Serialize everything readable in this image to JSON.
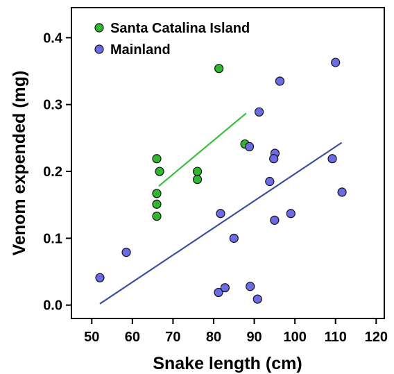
{
  "chart_data": {
    "type": "scatter",
    "xlabel": "Snake length (cm)",
    "ylabel": "Venom expended (mg)",
    "xlim": [
      45,
      122
    ],
    "ylim": [
      -0.02,
      0.445
    ],
    "x_ticks": [
      50,
      60,
      70,
      80,
      90,
      100,
      110,
      120
    ],
    "y_ticks": [
      0.0,
      0.1,
      0.2,
      0.3,
      0.4
    ],
    "x_tick_labels": [
      "50",
      "60",
      "70",
      "80",
      "90",
      "100",
      "110",
      "120"
    ],
    "y_tick_labels": [
      "0.0",
      "0.1",
      "0.2",
      "0.3",
      "0.4"
    ],
    "grid": false,
    "legend_position": "top-left",
    "series": [
      {
        "name": "Santa Catalina Island",
        "color": "#2eb82e",
        "line_color": "#3cbf3c",
        "points": [
          [
            66,
            0.219
          ],
          [
            66.7,
            0.2
          ],
          [
            66,
            0.167
          ],
          [
            66,
            0.151
          ],
          [
            66,
            0.133
          ],
          [
            76,
            0.2
          ],
          [
            76,
            0.188
          ],
          [
            81.3,
            0.354
          ],
          [
            87.7,
            0.241
          ]
        ],
        "trend": {
          "x": [
            66.5,
            88
          ],
          "y": [
            0.178,
            0.287
          ]
        }
      },
      {
        "name": "Mainland",
        "color": "#6b6be8",
        "line_color": "#3a4fa0",
        "points": [
          [
            52,
            0.041
          ],
          [
            58.5,
            0.079
          ],
          [
            81.7,
            0.137
          ],
          [
            85,
            0.1
          ],
          [
            81.2,
            0.019
          ],
          [
            82.8,
            0.026
          ],
          [
            89,
            0.028
          ],
          [
            90.8,
            0.009
          ],
          [
            88.8,
            0.237
          ],
          [
            91.2,
            0.289
          ],
          [
            96.3,
            0.335
          ],
          [
            95.1,
            0.227
          ],
          [
            94.8,
            0.219
          ],
          [
            93.8,
            0.185
          ],
          [
            95,
            0.127
          ],
          [
            99,
            0.137
          ],
          [
            109.2,
            0.219
          ],
          [
            111.6,
            0.169
          ],
          [
            110,
            0.363
          ]
        ],
        "trend": {
          "x": [
            52,
            111.5
          ],
          "y": [
            0.002,
            0.243
          ]
        }
      }
    ]
  }
}
